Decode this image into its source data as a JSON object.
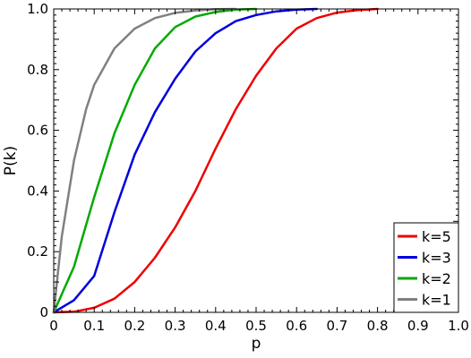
{
  "chart_data": {
    "type": "line",
    "xlabel": "p",
    "ylabel": "P(k)",
    "xlim": [
      0,
      1
    ],
    "ylim": [
      0,
      1
    ],
    "grid": false,
    "legend_position": "bottom-right",
    "x_ticks": [
      "0",
      "0.1",
      "0.2",
      "0.3",
      "0.4",
      "0.5",
      "0.6",
      "0.7",
      "0.8",
      "0.9",
      "1.0"
    ],
    "y_ticks": [
      "0",
      "0.2",
      "0.4",
      "0.6",
      "0.8",
      "1.0"
    ],
    "series": [
      {
        "name": "k=5",
        "color": "#ee0000",
        "x": [
          0,
          0.05,
          0.1,
          0.15,
          0.2,
          0.25,
          0.3,
          0.35,
          0.4,
          0.45,
          0.5,
          0.55,
          0.6,
          0.65,
          0.7,
          0.75,
          0.8
        ],
        "y": [
          0,
          0.002,
          0.015,
          0.045,
          0.1,
          0.18,
          0.28,
          0.4,
          0.54,
          0.67,
          0.78,
          0.87,
          0.935,
          0.97,
          0.988,
          0.996,
          1.0
        ]
      },
      {
        "name": "k=3",
        "color": "#0000dd",
        "x": [
          0,
          0.05,
          0.1,
          0.15,
          0.2,
          0.25,
          0.3,
          0.35,
          0.4,
          0.45,
          0.5,
          0.55,
          0.6,
          0.65
        ],
        "y": [
          0,
          0.04,
          0.12,
          0.33,
          0.52,
          0.66,
          0.77,
          0.86,
          0.92,
          0.96,
          0.98,
          0.992,
          0.998,
          1.0
        ]
      },
      {
        "name": "k=2",
        "color": "#00aa00",
        "x": [
          0,
          0.05,
          0.1,
          0.15,
          0.2,
          0.25,
          0.3,
          0.35,
          0.4,
          0.45,
          0.5
        ],
        "y": [
          0,
          0.15,
          0.38,
          0.59,
          0.75,
          0.87,
          0.94,
          0.975,
          0.99,
          0.998,
          1.0
        ]
      },
      {
        "name": "k=1",
        "color": "#808080",
        "x": [
          0,
          0.02,
          0.05,
          0.08,
          0.1,
          0.15,
          0.2,
          0.25,
          0.3,
          0.35,
          0.4,
          0.45
        ],
        "y": [
          0,
          0.25,
          0.5,
          0.67,
          0.75,
          0.87,
          0.935,
          0.97,
          0.987,
          0.995,
          0.999,
          1.0
        ]
      }
    ]
  }
}
